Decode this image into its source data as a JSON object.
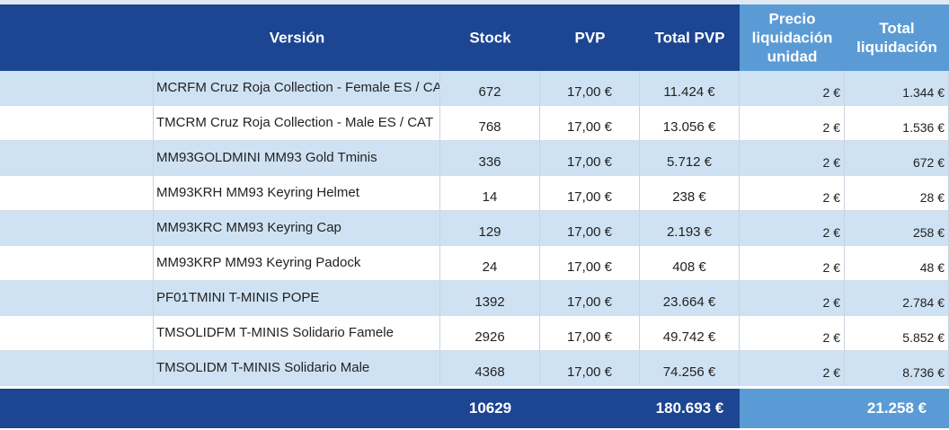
{
  "header": {
    "version": "Versión",
    "stock": "Stock",
    "pvp": "PVP",
    "total_pvp": "Total PVP",
    "precio_liquidacion": "Precio liquidación unidad",
    "total_liquidacion": "Total liquidación"
  },
  "rows": [
    {
      "version": "MCRFM Cruz Roja Collection - Female ES / CAT",
      "stock": "672",
      "pvp": "17,00 €",
      "total_pvp": "11.424 €",
      "precio": "2 €",
      "total_liq": "1.344 €"
    },
    {
      "version": "TMCRM Cruz Roja Collection - Male ES / CAT",
      "stock": "768",
      "pvp": "17,00 €",
      "total_pvp": "13.056 €",
      "precio": "2 €",
      "total_liq": "1.536 €"
    },
    {
      "version": "MM93GOLDMINI MM93 Gold Tminis",
      "stock": "336",
      "pvp": "17,00 €",
      "total_pvp": "5.712 €",
      "precio": "2 €",
      "total_liq": "672 €"
    },
    {
      "version": "MM93KRH MM93 Keyring Helmet",
      "stock": "14",
      "pvp": "17,00 €",
      "total_pvp": "238 €",
      "precio": "2 €",
      "total_liq": "28 €"
    },
    {
      "version": "MM93KRC MM93 Keyring Cap",
      "stock": "129",
      "pvp": "17,00 €",
      "total_pvp": "2.193 €",
      "precio": "2 €",
      "total_liq": "258 €"
    },
    {
      "version": "MM93KRP MM93 Keyring Padock",
      "stock": "24",
      "pvp": "17,00 €",
      "total_pvp": "408 €",
      "precio": "2 €",
      "total_liq": "48 €"
    },
    {
      "version": "PF01TMINI T-MINIS POPE",
      "stock": "1392",
      "pvp": "17,00 €",
      "total_pvp": "23.664 €",
      "precio": "2 €",
      "total_liq": "2.784 €"
    },
    {
      "version": "TMSOLIDFM T-MINIS Solidario Famele",
      "stock": "2926",
      "pvp": "17,00 €",
      "total_pvp": "49.742 €",
      "precio": "2 €",
      "total_liq": "5.852 €"
    },
    {
      "version": "TMSOLIDM T-MINIS Solidario Male",
      "stock": "4368",
      "pvp": "17,00 €",
      "total_pvp": "74.256 €",
      "precio": "2 €",
      "total_liq": "8.736 €"
    }
  ],
  "totals": {
    "stock": "10629",
    "total_pvp": "180.693 €",
    "total_liq": "21.258 €"
  },
  "colors": {
    "header_dark": "#1c4592",
    "header_light": "#5b9bd5",
    "row_stripe": "#cfe2f3"
  }
}
